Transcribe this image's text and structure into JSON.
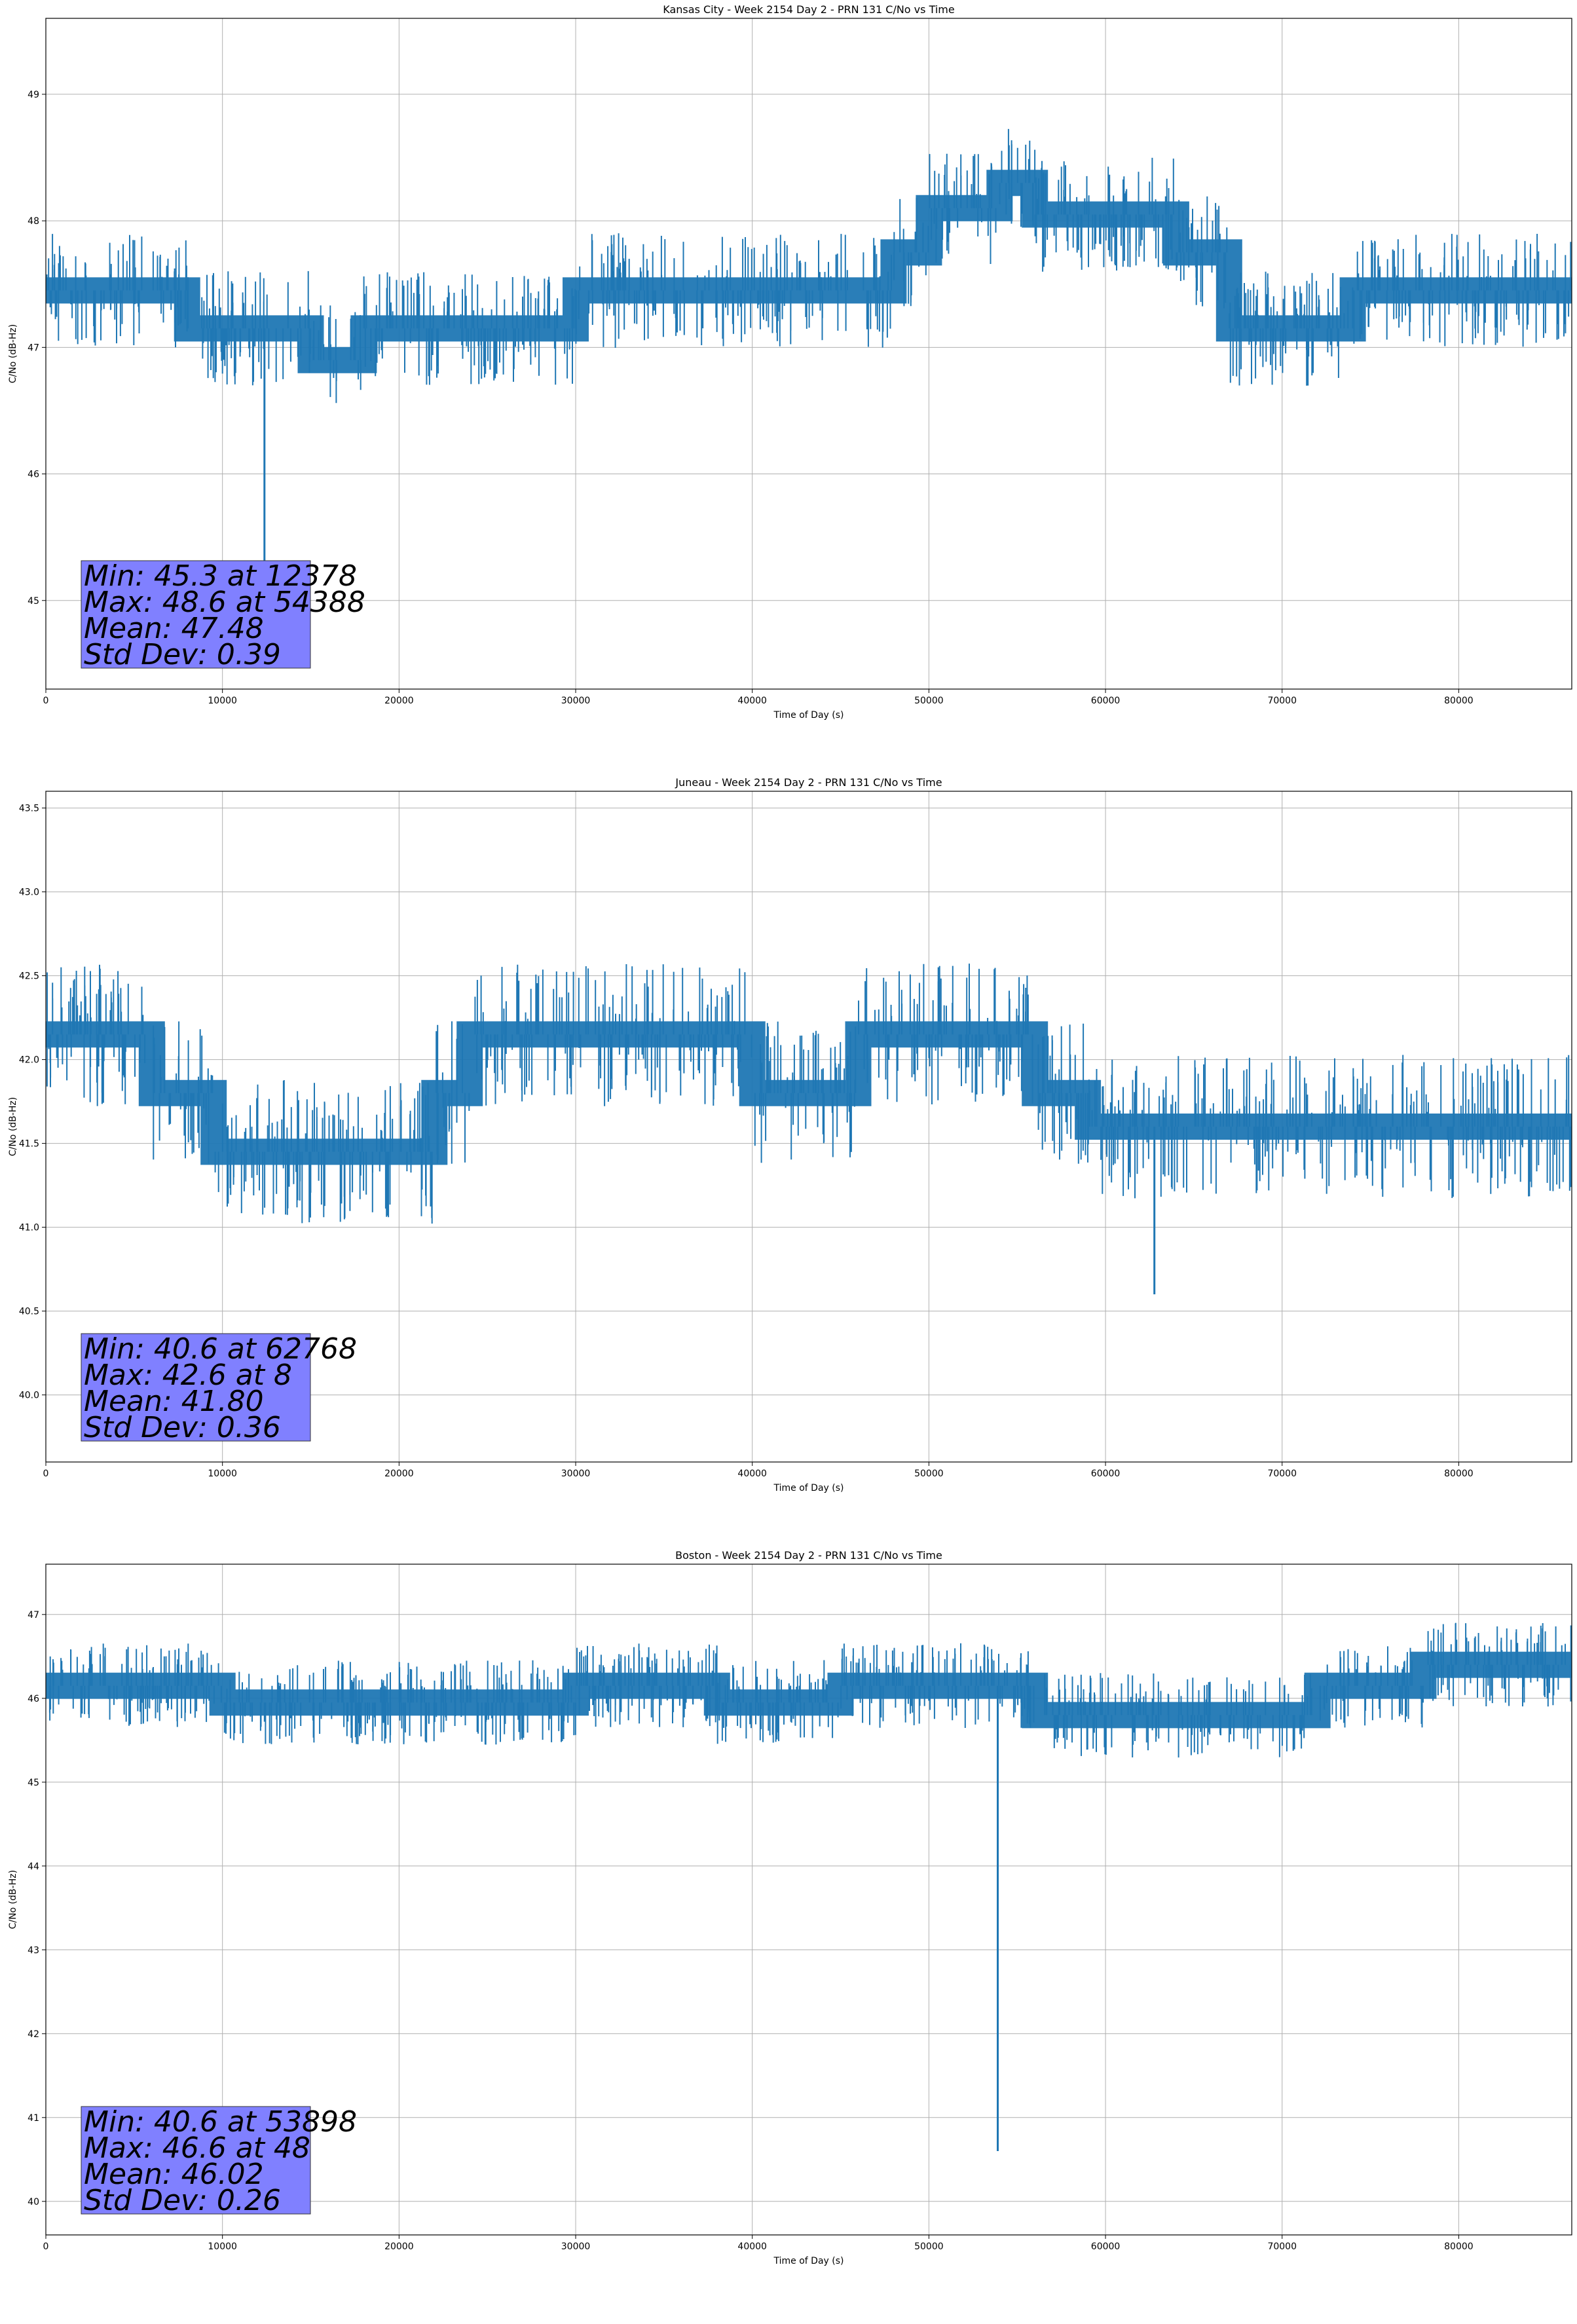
{
  "chart_data": [
    {
      "type": "line",
      "title": "Kansas City - Week 2154 Day 2 - PRN 131 C/No vs Time",
      "xlabel": "Time of Day (s)",
      "ylabel": "C/No (dB-Hz)",
      "xlim": [
        0,
        86400
      ],
      "ylim": [
        44.3,
        49.6
      ],
      "xticks": [
        0,
        10000,
        20000,
        30000,
        40000,
        50000,
        60000,
        70000,
        80000
      ],
      "yticks": [
        45,
        46,
        47,
        48,
        49
      ],
      "grid": true,
      "color": "#1f77b4",
      "stats": [
        "Min: 45.3 at 12378",
        "Max: 48.6 at 54388",
        "Mean: 47.48",
        "Std Dev: 0.39"
      ],
      "series": [
        {
          "x": [
            0,
            8000,
            8000,
            15000,
            15000,
            18000,
            18000,
            30000,
            30000,
            48000,
            48000,
            50000,
            50000,
            54000,
            54000,
            56000,
            56000,
            64000,
            64000,
            67000,
            67000,
            74000,
            74000,
            86400
          ],
          "y": [
            47.45,
            47.45,
            47.15,
            47.15,
            46.9,
            46.9,
            47.15,
            47.15,
            47.45,
            47.45,
            47.75,
            47.75,
            48.1,
            48.1,
            48.3,
            48.3,
            48.05,
            48.05,
            47.75,
            47.75,
            47.15,
            47.15,
            47.45,
            47.45
          ]
        }
      ]
    },
    {
      "type": "line",
      "title": "Juneau - Week 2154 Day 2 - PRN 131 C/No vs Time",
      "xlabel": "Time of Day (s)",
      "ylabel": "C/No (dB-Hz)",
      "xlim": [
        0,
        86400
      ],
      "ylim": [
        39.6,
        43.6
      ],
      "xticks": [
        0,
        10000,
        20000,
        30000,
        40000,
        50000,
        60000,
        70000,
        80000
      ],
      "yticks": [
        40.0,
        40.5,
        41.0,
        41.5,
        42.0,
        42.5,
        43.0,
        43.5
      ],
      "grid": true,
      "color": "#1f77b4",
      "stats": [
        "Min: 40.6 at 62768",
        "Max: 42.6 at 8",
        "Mean: 41.80",
        "Std Dev: 0.36"
      ],
      "series": [
        {
          "x": [
            0,
            6000,
            6000,
            9500,
            9500,
            22000,
            22000,
            24000,
            24000,
            40000,
            40000,
            46000,
            46000,
            56000,
            56000,
            59000,
            59000,
            86400
          ],
          "y": [
            42.15,
            42.15,
            41.8,
            41.8,
            41.45,
            41.45,
            41.8,
            41.8,
            42.15,
            42.15,
            41.8,
            41.8,
            42.15,
            42.15,
            41.8,
            41.8,
            41.6,
            41.6
          ]
        }
      ]
    },
    {
      "type": "line",
      "title": "Boston - Week 2154 Day 2 - PRN 131 C/No vs Time",
      "xlabel": "Time of Day (s)",
      "ylabel": "C/No (dB-Hz)",
      "xlim": [
        0,
        86400
      ],
      "ylim": [
        39.6,
        47.6
      ],
      "xticks": [
        0,
        10000,
        20000,
        30000,
        40000,
        50000,
        60000,
        70000,
        80000
      ],
      "yticks": [
        40,
        41,
        42,
        43,
        44,
        45,
        46,
        47
      ],
      "grid": true,
      "color": "#1f77b4",
      "stats": [
        "Min: 40.6 at 53898",
        "Max: 46.6 at 48",
        "Mean: 46.02",
        "Std Dev: 0.26"
      ],
      "series": [
        {
          "x": [
            0,
            10000,
            10000,
            30000,
            30000,
            38000,
            38000,
            45000,
            45000,
            56000,
            56000,
            72000,
            72000,
            78000,
            78000,
            86400
          ],
          "y": [
            46.15,
            46.15,
            45.95,
            45.95,
            46.15,
            46.15,
            45.95,
            45.95,
            46.15,
            46.15,
            45.8,
            45.8,
            46.15,
            46.15,
            46.4,
            46.4
          ]
        }
      ]
    }
  ]
}
